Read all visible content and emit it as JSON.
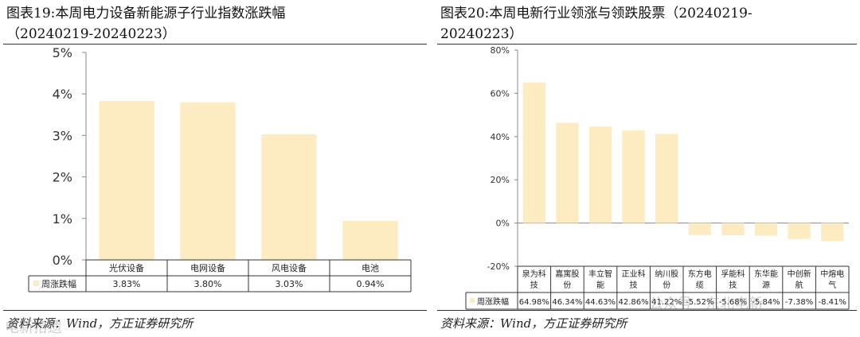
{
  "left": {
    "title_line1": "图表19:本周电力设备新能源子行业指数涨跌幅",
    "title_line2": "（20240219-20240223）",
    "source": "资料来源：Wind，方正证券研究所",
    "watermark": "电新拾遗"
  },
  "right": {
    "title_line1": "图表20:本周电新行业领涨与领跌股票（20240219-",
    "title_line2": "20240223）",
    "source": "资料来源：Wind，方正证券研究所",
    "watermark": "公众号 · 东北电新"
  },
  "colors": {
    "bar": "#FDEBC2",
    "axis": "#888888",
    "grid": "#cccccc"
  },
  "chart_data": [
    {
      "type": "bar",
      "categories": [
        "光伏设备",
        "电网设备",
        "风电设备",
        "电池"
      ],
      "values": [
        3.83,
        3.8,
        3.03,
        0.94
      ],
      "value_labels": [
        "3.83%",
        "3.80%",
        "3.03%",
        "0.94%"
      ],
      "series_name": "周涨跌幅",
      "yticks": [
        "0%",
        "1%",
        "2%",
        "3%",
        "4%",
        "5%"
      ],
      "ylim": [
        0,
        5
      ],
      "legend": "data-table"
    },
    {
      "type": "bar",
      "categories": [
        "泉为科技",
        "嘉寓股份",
        "丰立智能",
        "正业科技",
        "纳川股份",
        "东方电缆",
        "孚能科技",
        "东华能源",
        "中创新航",
        "中熔电气"
      ],
      "category_lines": [
        [
          "泉为科",
          "技"
        ],
        [
          "嘉寓股",
          "份"
        ],
        [
          "丰立智",
          "能"
        ],
        [
          "正业科",
          "技"
        ],
        [
          "纳川股",
          "份"
        ],
        [
          "东方电",
          "缆"
        ],
        [
          "孚能科",
          "技"
        ],
        [
          "东华能",
          "源"
        ],
        [
          "中创新",
          "航"
        ],
        [
          "中熔电",
          "气"
        ]
      ],
      "values": [
        64.98,
        46.34,
        44.63,
        42.86,
        41.22,
        -5.52,
        -5.68,
        -5.84,
        -7.38,
        -8.41
      ],
      "value_labels": [
        "64.98%",
        "46.34%",
        "44.63%",
        "42.86%",
        "41.22%",
        "-5.52%",
        "-5.68%",
        "-5.84%",
        "-7.38%",
        "-8.41%"
      ],
      "series_name": "周涨跌幅",
      "yticks": [
        "-20%",
        "0%",
        "20%",
        "40%",
        "60%",
        "80%"
      ],
      "ylim": [
        -20,
        80
      ],
      "legend": "data-table"
    }
  ]
}
